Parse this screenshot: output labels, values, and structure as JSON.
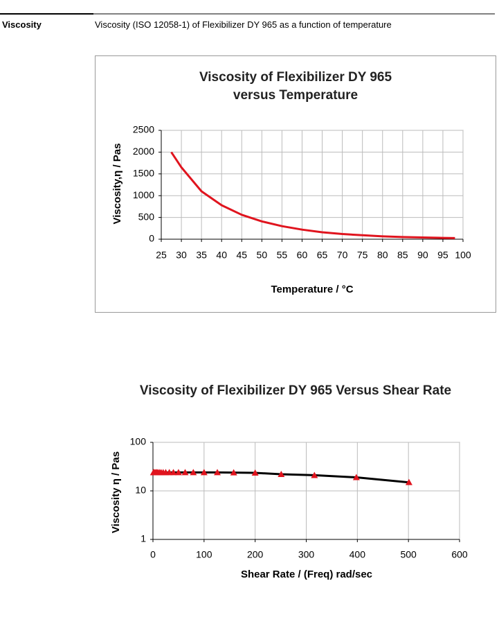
{
  "section": {
    "label": "Viscosity",
    "description": "Viscosity (ISO 12058-1) of Flexibilizer DY 965 as a function of temperature"
  },
  "chart_data": [
    {
      "type": "line",
      "title": "Viscosity of Flexibilizer DY 965 versus Temperature",
      "x_label": "Temperature / °C",
      "y_label": "Viscosity,η / Pas",
      "x": [
        27.5,
        30,
        35,
        40,
        45,
        50,
        55,
        60,
        65,
        70,
        75,
        80,
        85,
        90,
        95,
        98
      ],
      "values": [
        2000,
        1650,
        1100,
        780,
        560,
        410,
        300,
        220,
        160,
        120,
        90,
        65,
        50,
        40,
        30,
        25
      ],
      "color": "#e0141e",
      "xlim": [
        25,
        100
      ],
      "xticks": [
        25,
        30,
        35,
        40,
        45,
        50,
        55,
        60,
        65,
        70,
        75,
        80,
        85,
        90,
        95,
        100
      ],
      "ylim": [
        0,
        2500
      ],
      "yticks": [
        0,
        500,
        1000,
        1500,
        2000,
        2500
      ],
      "grid": true,
      "log_y": false
    },
    {
      "type": "line",
      "title": "Viscosity of Flexibilizer DY 965 Versus Shear Rate",
      "x_label": "Shear Rate / (Freq) rad/sec",
      "y_label": "Viscosity η / Pas",
      "x": [
        1,
        2,
        4,
        6,
        8,
        10,
        13,
        16,
        20,
        25,
        32,
        40,
        50,
        63,
        79,
        100,
        126,
        158,
        200,
        251,
        316,
        398,
        501
      ],
      "values": [
        24,
        24,
        24,
        24,
        24,
        24,
        24,
        24,
        24,
        24,
        24,
        24,
        24,
        24,
        24,
        24,
        24,
        23.8,
        23.5,
        22,
        21,
        19,
        15
      ],
      "color": "#000000",
      "marker_color": "#e0141e",
      "marker": "triangle",
      "xlim": [
        0,
        600
      ],
      "xticks": [
        0,
        100,
        200,
        300,
        400,
        500,
        600
      ],
      "ylim": [
        1,
        100
      ],
      "yticks": [
        1,
        10,
        100
      ],
      "grid": true,
      "log_y": true
    }
  ]
}
